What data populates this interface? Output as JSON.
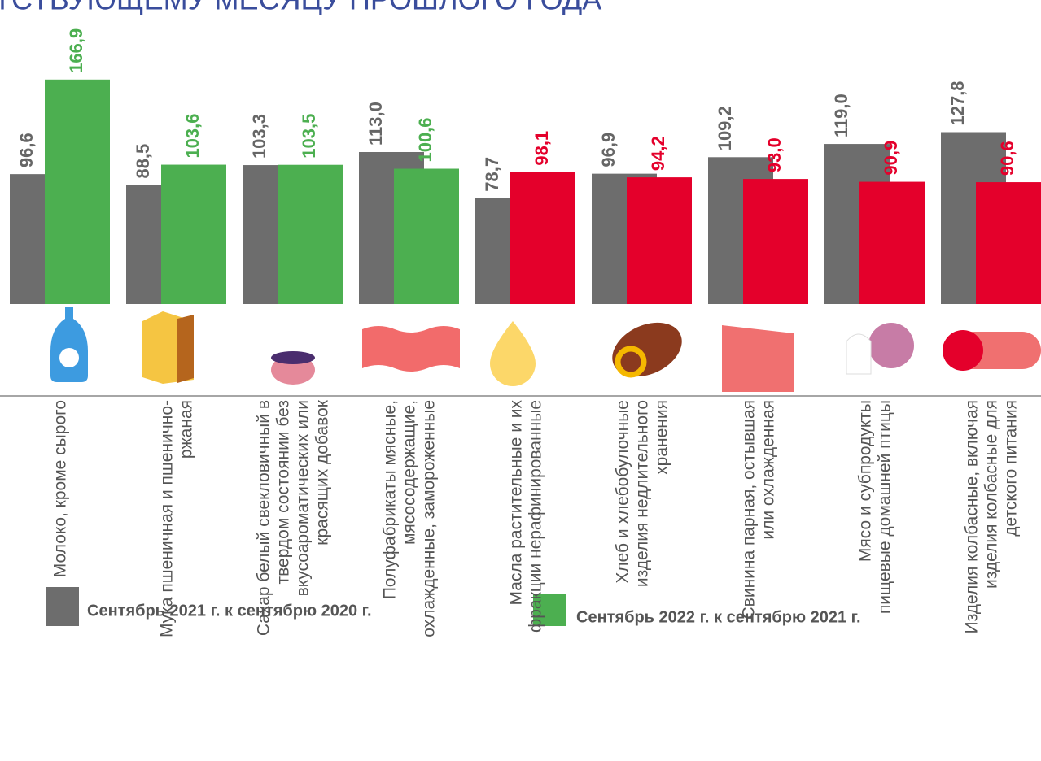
{
  "chart_data": {
    "type": "bar",
    "title": "ТСТВУЮЩЕМУ МЕСЯЦУ ПРОШЛОГО ГОДА",
    "categories": [
      [
        "Молоко, кроме сырого"
      ],
      [
        "Мука пшеничная и пшенично-",
        "ржаная"
      ],
      [
        "Сахар белый свекловичный в",
        "твердом состоянии без",
        "вкусоароматических или",
        "красящих добавок"
      ],
      [
        "Полуфабрикаты мясные,",
        "мясосодержащие,",
        "охлажденные, замороженные"
      ],
      [
        "Масла растительные и их",
        "фракции нерафинированные"
      ],
      [
        "Хлеб и хлебобулочные",
        "изделия недлительного",
        "хранения"
      ],
      [
        "Свинина парная, остывшая",
        "или охлажденная"
      ],
      [
        "Мясо и субпродукты",
        "пищевые домашней птицы"
      ],
      [
        "Изделия колбасные, включая",
        "изделия колбасные для",
        "детского питания"
      ]
    ],
    "series": [
      {
        "name": "Сентябрь 2021 г. к сентябрю 2020 г.",
        "color": "#6d6d6d",
        "values": [
          96.6,
          88.5,
          103.3,
          113.0,
          78.7,
          96.9,
          109.2,
          119.0,
          127.8
        ],
        "value_labels": [
          "96,6",
          "88,5",
          "103,3",
          "113,0",
          "78,7",
          "96,9",
          "109,2",
          "119,0",
          "127,8"
        ]
      },
      {
        "name": "Сентябрь 2022 г. к сентябрю 2021 г.",
        "color": "#4caf50",
        "colors": [
          "#4caf50",
          "#4caf50",
          "#4caf50",
          "#4caf50",
          "#e4002b",
          "#e4002b",
          "#e4002b",
          "#e4002b",
          "#e4002b"
        ],
        "values": [
          166.9,
          103.6,
          103.5,
          100.6,
          98.1,
          94.2,
          93.0,
          90.9,
          90.6
        ],
        "value_labels": [
          "166,9",
          "103,6",
          "103,5",
          "100,6",
          "98,1",
          "94,2",
          "93,0",
          "90,9",
          "90,6"
        ]
      }
    ],
    "ylim": [
      0,
      226
    ]
  }
}
